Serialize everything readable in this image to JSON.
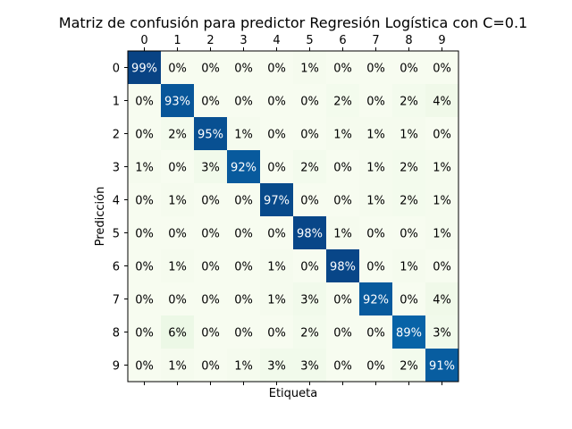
{
  "chart_data": {
    "type": "heatmap",
    "title": "Matriz de confusión para predictor Regresión Logística con C=0.1",
    "xlabel": "Etiqueta",
    "ylabel": "Predicción",
    "x_ticks": [
      "0",
      "1",
      "2",
      "3",
      "4",
      "5",
      "6",
      "7",
      "8",
      "9"
    ],
    "y_ticks": [
      "0",
      "1",
      "2",
      "3",
      "4",
      "5",
      "6",
      "7",
      "8",
      "9"
    ],
    "x_tick_position": "top",
    "value_format": "percent",
    "colormap": [
      "#f7fcf0",
      "#084081"
    ],
    "values": [
      [
        99,
        0,
        0,
        0,
        0,
        1,
        0,
        0,
        0,
        0
      ],
      [
        0,
        93,
        0,
        0,
        0,
        0,
        2,
        0,
        2,
        4
      ],
      [
        0,
        2,
        95,
        1,
        0,
        0,
        1,
        1,
        1,
        0
      ],
      [
        1,
        0,
        3,
        92,
        0,
        2,
        0,
        1,
        2,
        1
      ],
      [
        0,
        1,
        0,
        0,
        97,
        0,
        0,
        1,
        2,
        1
      ],
      [
        0,
        0,
        0,
        0,
        0,
        98,
        1,
        0,
        0,
        1
      ],
      [
        0,
        1,
        0,
        0,
        1,
        0,
        98,
        0,
        1,
        0
      ],
      [
        0,
        0,
        0,
        0,
        1,
        3,
        0,
        92,
        0,
        4
      ],
      [
        0,
        6,
        0,
        0,
        0,
        2,
        0,
        0,
        89,
        3
      ],
      [
        0,
        1,
        0,
        1,
        3,
        3,
        0,
        0,
        2,
        91
      ]
    ]
  }
}
